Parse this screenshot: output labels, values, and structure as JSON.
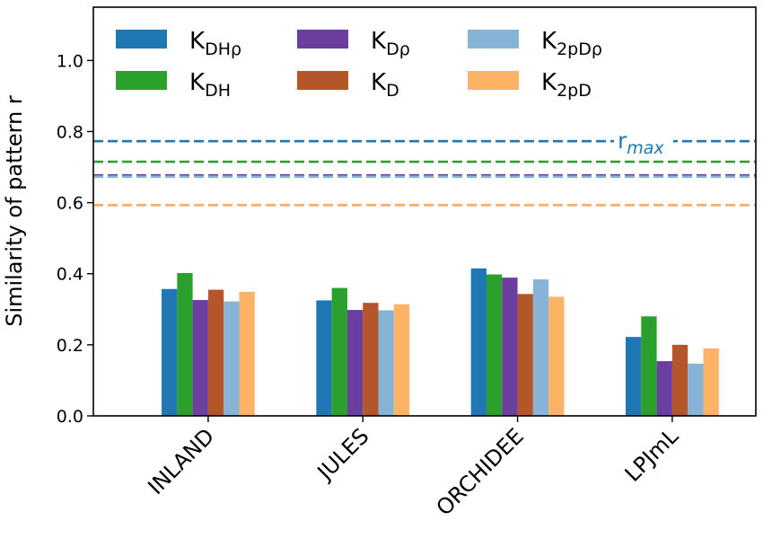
{
  "chart_data": {
    "type": "bar",
    "title": "",
    "xlabel": "",
    "ylabel": "Similarity of pattern r",
    "ylim": [
      0,
      1.15
    ],
    "yticks": [
      "0.0",
      "0.2",
      "0.4",
      "0.6",
      "0.8",
      "1.0"
    ],
    "categories": [
      "INLAND",
      "JULES",
      "ORCHIDEE",
      "LPJmL"
    ],
    "series": [
      {
        "name": "K",
        "sub": "DHρ",
        "color": "#1f77b4",
        "values": [
          0.357,
          0.325,
          0.415,
          0.222
        ],
        "rmax": 0.773
      },
      {
        "name": "K",
        "sub": "DH",
        "color": "#2ca02c",
        "values": [
          0.402,
          0.36,
          0.398,
          0.28
        ],
        "rmax": 0.715
      },
      {
        "name": "K",
        "sub": "Dρ",
        "color": "#6b3fa0",
        "values": [
          0.326,
          0.298,
          0.389,
          0.154
        ],
        "rmax": 0.677
      },
      {
        "name": "K",
        "sub": "D",
        "color": "#b5562a",
        "values": [
          0.355,
          0.318,
          0.343,
          0.2
        ],
        "rmax": 0.593
      },
      {
        "name": "K",
        "sub": "2pDρ",
        "color": "#87b3d6",
        "values": [
          0.322,
          0.297,
          0.384,
          0.147
        ],
        "rmax": 0.673
      },
      {
        "name": "K",
        "sub": "2pD",
        "color": "#fdb366",
        "values": [
          0.349,
          0.314,
          0.335,
          0.19
        ],
        "rmax": 0.593
      }
    ],
    "rmax_label": {
      "main": "r",
      "sub": "max"
    },
    "grid": false,
    "legend_placement": "top-left"
  }
}
